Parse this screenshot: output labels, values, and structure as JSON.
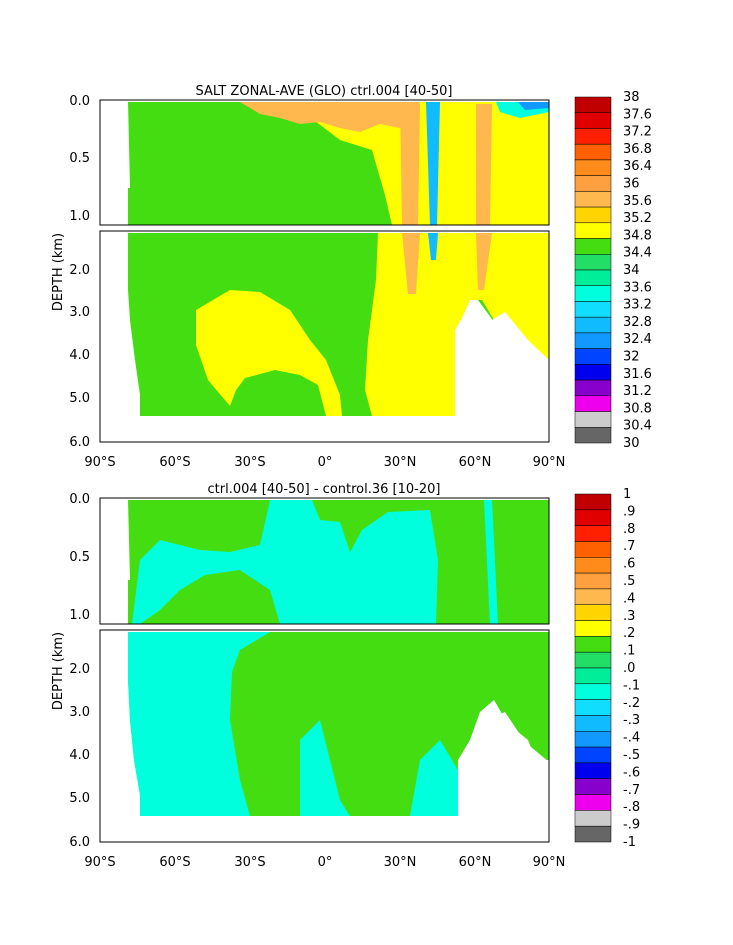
{
  "chart_data": [
    {
      "type": "heatmap",
      "title": "SALT ZONAL-AVE (GLO) ctrl.004 [40-50]",
      "ylabel": "DEPTH (km)",
      "xlabel": "",
      "x_ticks": [
        "90°S",
        "60°S",
        "30°S",
        "0°",
        "30°N",
        "60°N",
        "90°N"
      ],
      "y_ticks_upper": [
        "0.0",
        "0.5",
        "1.0"
      ],
      "y_ticks_lower": [
        "2.0",
        "3.0",
        "4.0",
        "5.0",
        "6.0"
      ],
      "xlim": [
        -90,
        90
      ],
      "ylim_km": [
        0,
        6
      ],
      "colorbar_labels": [
        "38",
        "37.6",
        "37.2",
        "36.8",
        "36.4",
        "36",
        "35.6",
        "35.2",
        "34.8",
        "34.4",
        "34",
        "33.6",
        "33.2",
        "32.8",
        "32.4",
        "32",
        "31.6",
        "31.2",
        "30.8",
        "30.4",
        "30"
      ],
      "colorbar_colors": [
        "#c00000",
        "#e00000",
        "#ff2000",
        "#ff6000",
        "#ff8c1a",
        "#ffa040",
        "#ffb84d",
        "#ffd400",
        "#ffff00",
        "#44dd11",
        "#22dd66",
        "#00ee99",
        "#00ffdd",
        "#11ddff",
        "#11bbff",
        "#1199ff",
        "#0044ff",
        "#0000ee",
        "#8800cc",
        "#ee00ee",
        "#cccccc",
        "#666666"
      ]
    },
    {
      "type": "heatmap",
      "title": "ctrl.004 [40-50] - control.36 [10-20]",
      "ylabel": "DEPTH (km)",
      "xlabel": "",
      "x_ticks": [
        "90°S",
        "60°S",
        "30°S",
        "0°",
        "30°N",
        "60°N",
        "90°N"
      ],
      "y_ticks_upper": [
        "0.0",
        "0.5",
        "1.0"
      ],
      "y_ticks_lower": [
        "2.0",
        "3.0",
        "4.0",
        "5.0",
        "6.0"
      ],
      "xlim": [
        -90,
        90
      ],
      "ylim_km": [
        0,
        6
      ],
      "colorbar_labels": [
        "1",
        ".9",
        ".8",
        ".7",
        ".6",
        ".5",
        ".4",
        ".3",
        ".2",
        ".1",
        ".0",
        "-.1",
        "-.2",
        "-.3",
        "-.4",
        "-.5",
        "-.6",
        "-.7",
        "-.8",
        "-.9",
        "-1"
      ],
      "colorbar_colors": [
        "#c00000",
        "#e00000",
        "#ff2000",
        "#ff6000",
        "#ff8c1a",
        "#ffa040",
        "#ffb84d",
        "#ffd400",
        "#ffff00",
        "#44dd11",
        "#22dd66",
        "#00ee99",
        "#00ffdd",
        "#11ddff",
        "#11bbff",
        "#1199ff",
        "#0044ff",
        "#0000ee",
        "#8800cc",
        "#ee00ee",
        "#cccccc",
        "#666666"
      ]
    }
  ]
}
